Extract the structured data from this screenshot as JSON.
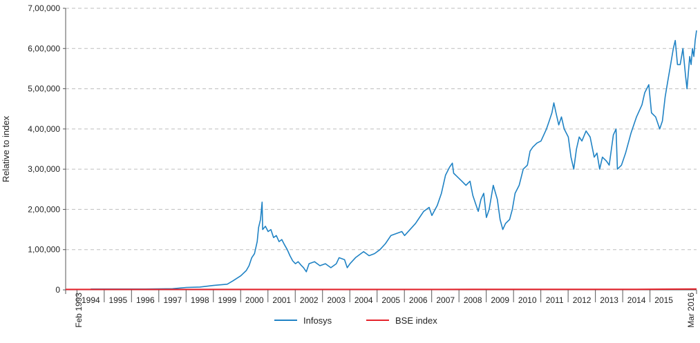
{
  "chart_data": {
    "type": "line",
    "title": "",
    "ylabel": "Relative to index",
    "xlabel": "",
    "ylim": [
      0,
      700000
    ],
    "y_ticks": [
      {
        "value": 0,
        "label": "0"
      },
      {
        "value": 100000,
        "label": "1,00,000"
      },
      {
        "value": 200000,
        "label": "2,00,000"
      },
      {
        "value": 300000,
        "label": "3,00,000"
      },
      {
        "value": 400000,
        "label": "4,00,000"
      },
      {
        "value": 500000,
        "label": "5,00,000"
      },
      {
        "value": 600000,
        "label": "6,00,000"
      },
      {
        "value": 700000,
        "label": "7,00,000"
      }
    ],
    "x_range": [
      1993.08,
      2016.2
    ],
    "x_ticks": [
      {
        "value": 1993.08,
        "label": "Feb 1993",
        "rotated": true
      },
      {
        "value": 1994,
        "label": "1994"
      },
      {
        "value": 1995,
        "label": "1995"
      },
      {
        "value": 1996,
        "label": "1996"
      },
      {
        "value": 1997,
        "label": "1997"
      },
      {
        "value": 1998,
        "label": "1998"
      },
      {
        "value": 1999,
        "label": "1999"
      },
      {
        "value": 2000,
        "label": "2000"
      },
      {
        "value": 2001,
        "label": "2001"
      },
      {
        "value": 2002,
        "label": "2002"
      },
      {
        "value": 2003,
        "label": "2003"
      },
      {
        "value": 2004,
        "label": "2004"
      },
      {
        "value": 2005,
        "label": "2005"
      },
      {
        "value": 2006,
        "label": "2006"
      },
      {
        "value": 2007,
        "label": "2007"
      },
      {
        "value": 2008,
        "label": "2008"
      },
      {
        "value": 2009,
        "label": "2009"
      },
      {
        "value": 2010,
        "label": "2010"
      },
      {
        "value": 2011,
        "label": "2011"
      },
      {
        "value": 2012,
        "label": "2012"
      },
      {
        "value": 2013,
        "label": "2013"
      },
      {
        "value": 2014,
        "label": "2014"
      },
      {
        "value": 2015,
        "label": "2015"
      },
      {
        "value": 2016.2,
        "label": "Mar 2016",
        "rotated": true
      }
    ],
    "grid": true,
    "legend_position": "bottom",
    "series": [
      {
        "name": "Infosys",
        "color": "#1f82c4",
        "points": [
          [
            1994.0,
            2000
          ],
          [
            1995.0,
            2000
          ],
          [
            1996.0,
            2000
          ],
          [
            1996.5,
            2500
          ],
          [
            1997.0,
            3000
          ],
          [
            1997.5,
            6000
          ],
          [
            1998.0,
            7000
          ],
          [
            1998.5,
            11000
          ],
          [
            1999.0,
            14000
          ],
          [
            1999.2,
            22000
          ],
          [
            1999.5,
            35000
          ],
          [
            1999.7,
            48000
          ],
          [
            1999.8,
            60000
          ],
          [
            1999.9,
            80000
          ],
          [
            2000.0,
            90000
          ],
          [
            2000.1,
            120000
          ],
          [
            2000.15,
            155000
          ],
          [
            2000.22,
            175000
          ],
          [
            2000.28,
            218000
          ],
          [
            2000.3,
            150000
          ],
          [
            2000.4,
            158000
          ],
          [
            2000.5,
            145000
          ],
          [
            2000.6,
            150000
          ],
          [
            2000.7,
            130000
          ],
          [
            2000.8,
            135000
          ],
          [
            2000.9,
            120000
          ],
          [
            2001.0,
            125000
          ],
          [
            2001.1,
            112000
          ],
          [
            2001.2,
            100000
          ],
          [
            2001.3,
            85000
          ],
          [
            2001.4,
            72000
          ],
          [
            2001.5,
            65000
          ],
          [
            2001.6,
            70000
          ],
          [
            2001.7,
            62000
          ],
          [
            2001.8,
            55000
          ],
          [
            2001.9,
            45000
          ],
          [
            2002.0,
            65000
          ],
          [
            2002.2,
            70000
          ],
          [
            2002.4,
            60000
          ],
          [
            2002.6,
            65000
          ],
          [
            2002.8,
            55000
          ],
          [
            2003.0,
            65000
          ],
          [
            2003.1,
            80000
          ],
          [
            2003.3,
            75000
          ],
          [
            2003.4,
            55000
          ],
          [
            2003.5,
            65000
          ],
          [
            2003.7,
            80000
          ],
          [
            2003.9,
            90000
          ],
          [
            2004.0,
            95000
          ],
          [
            2004.2,
            85000
          ],
          [
            2004.4,
            90000
          ],
          [
            2004.6,
            100000
          ],
          [
            2004.8,
            115000
          ],
          [
            2005.0,
            135000
          ],
          [
            2005.2,
            140000
          ],
          [
            2005.4,
            145000
          ],
          [
            2005.5,
            135000
          ],
          [
            2005.7,
            150000
          ],
          [
            2005.9,
            165000
          ],
          [
            2006.0,
            175000
          ],
          [
            2006.2,
            195000
          ],
          [
            2006.4,
            205000
          ],
          [
            2006.5,
            185000
          ],
          [
            2006.7,
            210000
          ],
          [
            2006.85,
            240000
          ],
          [
            2007.0,
            285000
          ],
          [
            2007.15,
            305000
          ],
          [
            2007.25,
            315000
          ],
          [
            2007.3,
            290000
          ],
          [
            2007.45,
            280000
          ],
          [
            2007.6,
            270000
          ],
          [
            2007.75,
            260000
          ],
          [
            2007.9,
            270000
          ],
          [
            2008.0,
            235000
          ],
          [
            2008.1,
            215000
          ],
          [
            2008.2,
            195000
          ],
          [
            2008.3,
            225000
          ],
          [
            2008.4,
            240000
          ],
          [
            2008.5,
            180000
          ],
          [
            2008.6,
            200000
          ],
          [
            2008.75,
            260000
          ],
          [
            2008.9,
            225000
          ],
          [
            2009.0,
            175000
          ],
          [
            2009.1,
            150000
          ],
          [
            2009.2,
            165000
          ],
          [
            2009.35,
            175000
          ],
          [
            2009.45,
            200000
          ],
          [
            2009.55,
            240000
          ],
          [
            2009.7,
            260000
          ],
          [
            2009.85,
            300000
          ],
          [
            2010.0,
            310000
          ],
          [
            2010.1,
            345000
          ],
          [
            2010.2,
            355000
          ],
          [
            2010.35,
            365000
          ],
          [
            2010.5,
            370000
          ],
          [
            2010.6,
            385000
          ],
          [
            2010.7,
            400000
          ],
          [
            2010.8,
            420000
          ],
          [
            2010.9,
            440000
          ],
          [
            2010.97,
            465000
          ],
          [
            2011.05,
            440000
          ],
          [
            2011.15,
            410000
          ],
          [
            2011.25,
            430000
          ],
          [
            2011.35,
            400000
          ],
          [
            2011.5,
            380000
          ],
          [
            2011.6,
            330000
          ],
          [
            2011.7,
            300000
          ],
          [
            2011.8,
            350000
          ],
          [
            2011.9,
            380000
          ],
          [
            2012.0,
            370000
          ],
          [
            2012.15,
            395000
          ],
          [
            2012.3,
            380000
          ],
          [
            2012.45,
            330000
          ],
          [
            2012.55,
            340000
          ],
          [
            2012.65,
            300000
          ],
          [
            2012.75,
            330000
          ],
          [
            2012.9,
            320000
          ],
          [
            2013.0,
            310000
          ],
          [
            2013.1,
            360000
          ],
          [
            2013.15,
            385000
          ],
          [
            2013.25,
            400000
          ],
          [
            2013.3,
            300000
          ],
          [
            2013.45,
            310000
          ],
          [
            2013.6,
            340000
          ],
          [
            2013.8,
            390000
          ],
          [
            2014.0,
            430000
          ],
          [
            2014.1,
            445000
          ],
          [
            2014.2,
            460000
          ],
          [
            2014.3,
            490000
          ],
          [
            2014.45,
            510000
          ],
          [
            2014.55,
            440000
          ],
          [
            2014.7,
            430000
          ],
          [
            2014.85,
            400000
          ],
          [
            2014.95,
            420000
          ],
          [
            2015.05,
            480000
          ],
          [
            2015.15,
            520000
          ],
          [
            2015.25,
            560000
          ],
          [
            2015.35,
            600000
          ],
          [
            2015.42,
            620000
          ],
          [
            2015.5,
            560000
          ],
          [
            2015.6,
            560000
          ],
          [
            2015.7,
            600000
          ],
          [
            2015.8,
            530000
          ],
          [
            2015.85,
            500000
          ],
          [
            2015.95,
            580000
          ],
          [
            2016.0,
            560000
          ],
          [
            2016.05,
            600000
          ],
          [
            2016.1,
            580000
          ],
          [
            2016.15,
            620000
          ],
          [
            2016.2,
            645000
          ]
        ]
      },
      {
        "name": "BSE index",
        "color": "#e5222b",
        "points": [
          [
            1993.08,
            1000
          ],
          [
            1995.0,
            1000
          ],
          [
            1998.0,
            1000
          ],
          [
            2000.0,
            1000
          ],
          [
            2004.0,
            1000
          ],
          [
            2008.0,
            1200
          ],
          [
            2010.0,
            1300
          ],
          [
            2014.0,
            1400
          ],
          [
            2015.0,
            1800
          ],
          [
            2016.2,
            2000
          ]
        ]
      }
    ]
  }
}
